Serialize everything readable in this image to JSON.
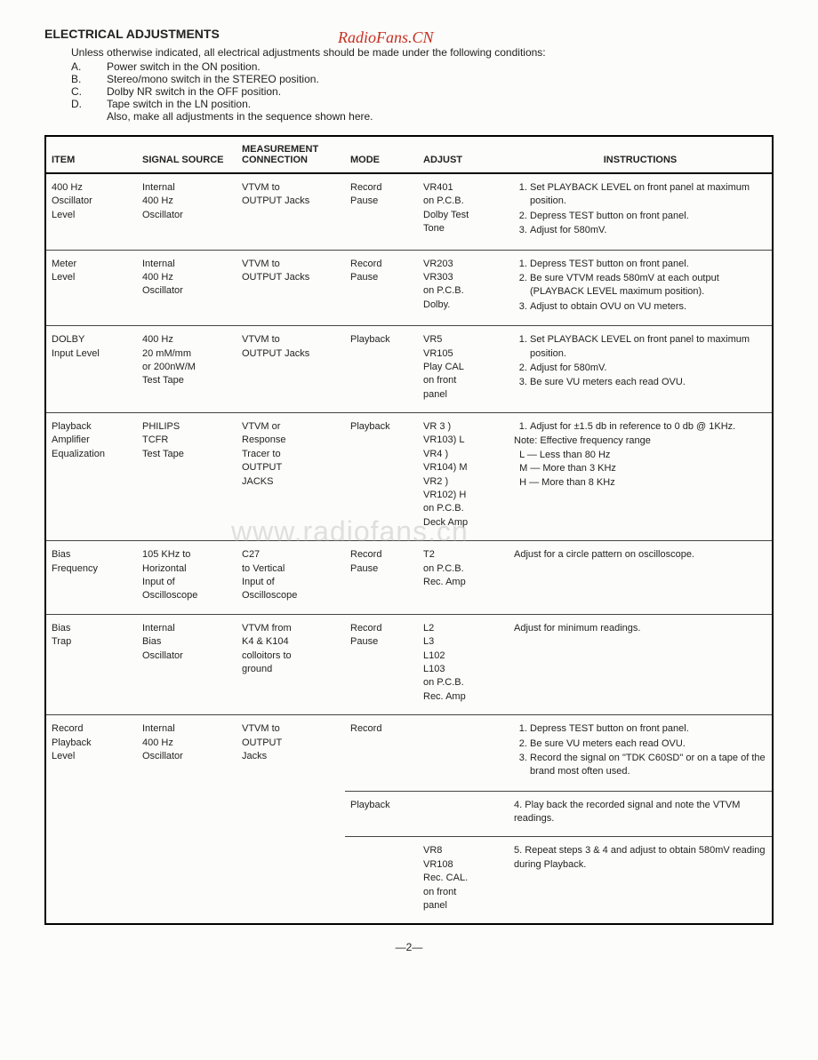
{
  "watermark_top": "RadioFans.CN",
  "watermark_mid": "www.radiofans.cn",
  "heading": "ELECTRICAL ADJUSTMENTS",
  "intro": "Unless otherwise indicated, all electrical adjustments should be made under the following conditions:",
  "conditions": [
    {
      "letter": "A.",
      "text": "Power switch in the ON position."
    },
    {
      "letter": "B.",
      "text": "Stereo/mono switch in the STEREO position."
    },
    {
      "letter": "C.",
      "text": "Dolby NR switch in the OFF position."
    },
    {
      "letter": "D.",
      "text": "Tape switch in the LN position."
    }
  ],
  "also": "Also, make all adjustments in the sequence shown here.",
  "headers": {
    "item": "ITEM",
    "source": "SIGNAL SOURCE",
    "conn": "MEASUREMENT CONNECTION",
    "mode": "MODE",
    "adjust": "ADJUST",
    "instr": "INSTRUCTIONS"
  },
  "rows": [
    {
      "item": "400 Hz\nOscillator\nLevel",
      "source": "Internal\n400 Hz\nOscillator",
      "conn": "VTVM to\nOUTPUT Jacks",
      "mode": "Record\nPause",
      "adjust": "VR401\non P.C.B.\nDolby Test\nTone",
      "instr": [
        "Set PLAYBACK LEVEL on front panel at maximum position.",
        "Depress TEST button on front panel.",
        "Adjust for 580mV."
      ]
    },
    {
      "item": "Meter\nLevel",
      "source": "Internal\n400 Hz\nOscillator",
      "conn": "VTVM to\nOUTPUT Jacks",
      "mode": "Record\nPause",
      "adjust": "VR203\nVR303\non P.C.B.\nDolby.",
      "instr": [
        "Depress TEST button on front panel.",
        "Be sure VTVM reads 580mV at each output (PLAYBACK LEVEL maximum position).",
        "Adjust to obtain OVU on VU meters."
      ]
    },
    {
      "item": "DOLBY\nInput Level",
      "source": "400 Hz\n20 mM/mm\nor 200nW/M\nTest Tape",
      "conn": "VTVM to\nOUTPUT Jacks",
      "mode": "Playback",
      "adjust": "VR5\nVR105\nPlay CAL\non front\npanel",
      "instr": [
        "Set PLAYBACK LEVEL on front panel to maximum position.",
        "Adjust for 580mV.",
        "Be sure VU meters each read OVU."
      ]
    },
    {
      "item": "Playback\nAmplifier\nEqualization",
      "source": "PHILIPS\nTCFR\nTest Tape",
      "conn": "VTVM or\nResponse\nTracer to\nOUTPUT\nJACKS",
      "mode": "Playback",
      "adjust": "VR 3  )\nVR103) L\nVR4  )\nVR104) M\nVR2  )\nVR102) H\non P.C.B.\nDeck Amp",
      "instr_html": "<ol class='instr'><li>Adjust for ±1.5 db in reference to 0 db @ 1KHz.</li></ol>Note: Effective frequency range<br>&nbsp;&nbsp;L — Less than 80 Hz<br>&nbsp;&nbsp;M — More than 3 KHz<br>&nbsp;&nbsp;H — More than 8 KHz"
    },
    {
      "item": "Bias\nFrequency",
      "source": "105 KHz to\nHorizontal\nInput of\nOscilloscope",
      "conn": "C27\nto Vertical\nInput of\nOscilloscope",
      "mode": "Record\nPause",
      "adjust": "T2\non P.C.B.\nRec. Amp",
      "instr_plain": "Adjust for a circle pattern on oscilloscope."
    },
    {
      "item": "Bias\nTrap",
      "source": "Internal\nBias\nOscillator",
      "conn": "VTVM from\nK4 & K104\ncolloitors to\nground",
      "mode": "Record\nPause",
      "adjust": "L2\nL3\nL102\nL103\non P.C.B.\nRec. Amp",
      "instr_plain": "Adjust for minimum readings."
    },
    {
      "item": "Record\nPlayback\nLevel",
      "source": "Internal\n400 Hz\nOscillator",
      "conn": "VTVM to\nOUTPUT\nJacks",
      "mode": "Record",
      "adjust": "",
      "instr": [
        "Depress TEST button on front panel.",
        "Be sure VU meters each read OVU.",
        "Record the signal on \"TDK C60SD\" or on a tape of the brand most often used."
      ]
    }
  ],
  "subrow1": {
    "mode": "Playback",
    "instr": "4.  Play back the recorded signal and note the VTVM readings."
  },
  "subrow2": {
    "adjust": "VR8\nVR108\nRec. CAL.\non front\npanel",
    "instr": "5.  Repeat steps 3 & 4 and adjust to obtain 580mV reading during Playback."
  },
  "pagenum": "—2—"
}
